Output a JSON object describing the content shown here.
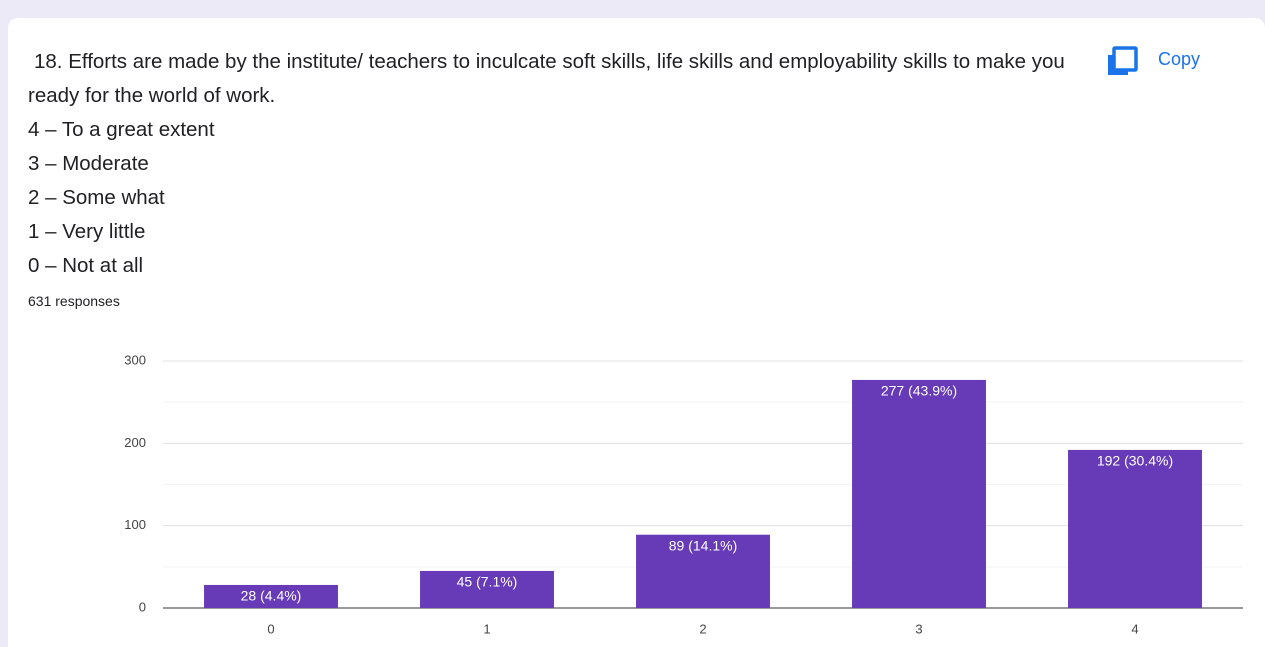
{
  "title": "18. Efforts are made by the institute/ teachers to inculcate soft skills, life skills and employability skills to make you ready for the world of work.",
  "options": [
    "4 – To a great extent",
    "3 – Moderate",
    "2 – Some what",
    "1 – Very little",
    "0 – Not at all"
  ],
  "responses": "631 responses",
  "copy_button": "Copy",
  "chart_data": {
    "type": "bar",
    "categories": [
      "0",
      "1",
      "2",
      "3",
      "4"
    ],
    "values": [
      28,
      45,
      89,
      277,
      192
    ],
    "value_labels": [
      "28 (4.4%)",
      "45 (7.1%)",
      "89 (14.1%)",
      "277 (43.9%)",
      "192 (30.4%)"
    ],
    "color": "#673ab7",
    "ylim": [
      0,
      300
    ],
    "yticks": [
      0,
      100,
      200,
      300
    ],
    "yminorticks": [
      50,
      150,
      250
    ],
    "grid": true
  }
}
